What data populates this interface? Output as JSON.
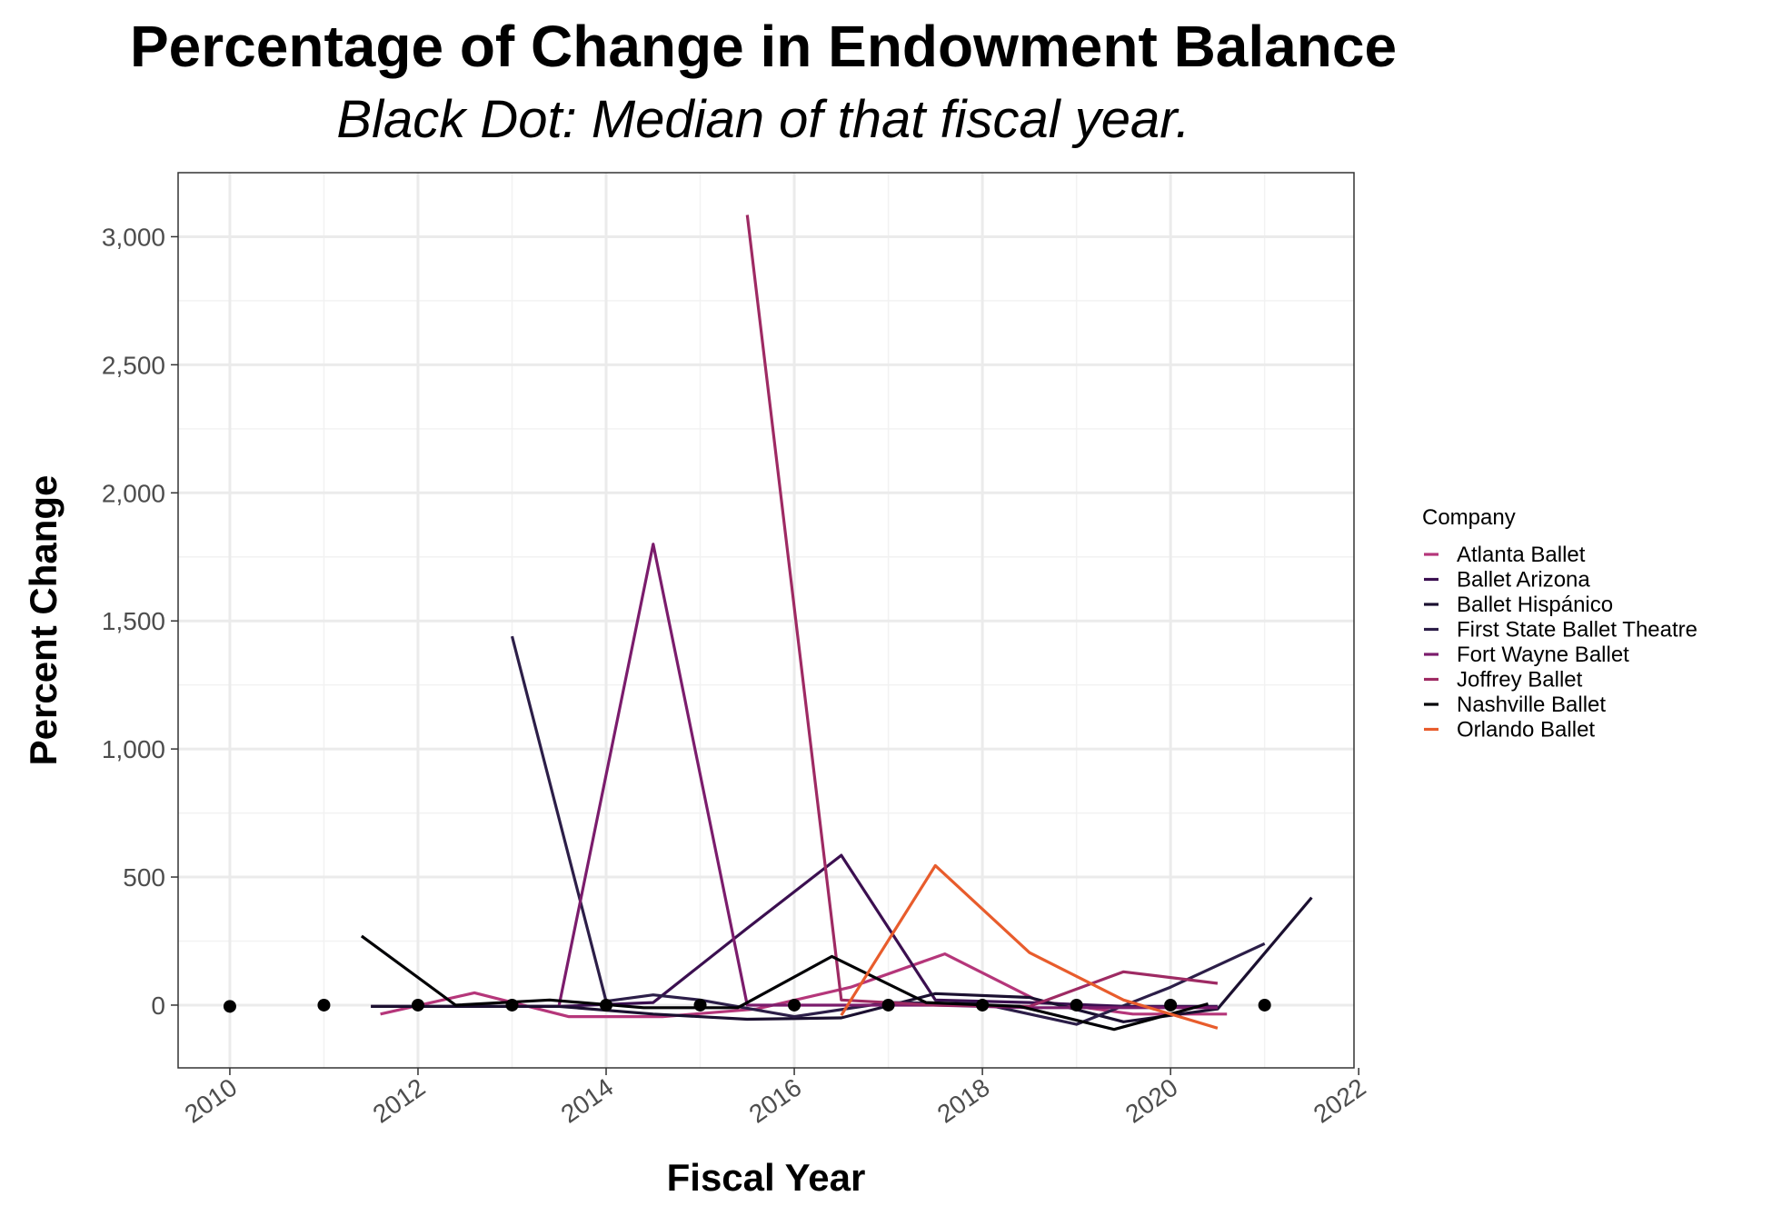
{
  "chart_data": {
    "type": "line",
    "title": "Percentage of Change in Endowment Balance",
    "subtitle": "Black Dot: Median of that fiscal year.",
    "xlabel": "Fiscal Year",
    "ylabel": "Percent Change",
    "xlim": [
      2009.45,
      2021.95
    ],
    "ylim": [
      -245,
      3250
    ],
    "x_ticks": [
      2010,
      2012,
      2014,
      2016,
      2018,
      2020,
      2022
    ],
    "y_ticks": [
      0,
      500,
      1000,
      1500,
      2000,
      2500,
      3000
    ],
    "y_tick_labels": [
      "0",
      "500",
      "1,000",
      "1,500",
      "2,000",
      "2,500",
      "3,000"
    ],
    "grid": true,
    "legend": {
      "title": "Company",
      "position": "right"
    },
    "series": [
      {
        "name": "Atlanta Ballet",
        "color": "#b5367a",
        "points": [
          [
            2011.6,
            -35
          ],
          [
            2012.6,
            48
          ],
          [
            2013.6,
            -45
          ],
          [
            2014.6,
            -45
          ],
          [
            2015.6,
            -15
          ],
          [
            2016.6,
            70
          ],
          [
            2017.6,
            200
          ],
          [
            2018.6,
            15
          ],
          [
            2019.6,
            -35
          ],
          [
            2020.6,
            -35
          ]
        ]
      },
      {
        "name": "Ballet Arizona",
        "color": "#3b0f50",
        "points": [
          [
            2011.5,
            -5
          ],
          [
            2012.5,
            -5
          ],
          [
            2013.5,
            -5
          ],
          [
            2014.5,
            10
          ],
          [
            2015.5,
            300
          ],
          [
            2016.5,
            585
          ],
          [
            2017.5,
            20
          ],
          [
            2018.5,
            10
          ],
          [
            2019.5,
            -5
          ],
          [
            2020.5,
            -5
          ]
        ]
      },
      {
        "name": "Ballet Hispánico",
        "color": "#1b1030",
        "points": [
          [
            2011.5,
            -5
          ],
          [
            2012.5,
            -5
          ],
          [
            2013.5,
            -5
          ],
          [
            2014.5,
            -35
          ],
          [
            2015.5,
            -55
          ],
          [
            2016.5,
            -50
          ],
          [
            2017.5,
            45
          ],
          [
            2018.5,
            30
          ],
          [
            2019.5,
            -65
          ],
          [
            2020.5,
            -15
          ],
          [
            2021.5,
            420
          ]
        ]
      },
      {
        "name": "First State Ballet Theatre",
        "color": "#2c1e48",
        "points": [
          [
            2013,
            1440
          ],
          [
            2014,
            15
          ],
          [
            2014.5,
            40
          ],
          [
            2015,
            20
          ],
          [
            2016,
            -45
          ],
          [
            2017,
            10
          ],
          [
            2018,
            5
          ],
          [
            2019,
            -75
          ],
          [
            2020,
            70
          ],
          [
            2021,
            240
          ]
        ]
      },
      {
        "name": "Fort Wayne Ballet",
        "color": "#7b1c6c",
        "points": [
          [
            2013.5,
            0
          ],
          [
            2014.5,
            1800
          ],
          [
            2015.5,
            0
          ],
          [
            2016.5,
            0
          ],
          [
            2017.5,
            0
          ],
          [
            2018.5,
            -10
          ],
          [
            2019.5,
            -10
          ],
          [
            2020.5,
            -10
          ]
        ]
      },
      {
        "name": "Joffrey Ballet",
        "color": "#9e2a63",
        "points": [
          [
            2015.5,
            3085
          ],
          [
            2016.5,
            20
          ],
          [
            2017.5,
            0
          ],
          [
            2018.5,
            -5
          ],
          [
            2019.5,
            130
          ],
          [
            2020.5,
            85
          ]
        ]
      },
      {
        "name": "Nashville Ballet",
        "color": "#000004",
        "points": [
          [
            2011.4,
            270
          ],
          [
            2012.4,
            0
          ],
          [
            2013.4,
            20
          ],
          [
            2014.4,
            -10
          ],
          [
            2015.4,
            -10
          ],
          [
            2016.4,
            190
          ],
          [
            2017.4,
            10
          ],
          [
            2018.4,
            -5
          ],
          [
            2019.4,
            -95
          ],
          [
            2020.4,
            5
          ]
        ]
      },
      {
        "name": "Orlando Ballet",
        "color": "#e85c2c",
        "points": [
          [
            2016.5,
            -40
          ],
          [
            2017.5,
            545
          ],
          [
            2018.5,
            205
          ],
          [
            2019.5,
            20
          ],
          [
            2020.5,
            -90
          ]
        ]
      }
    ],
    "medians": {
      "color": "#000000",
      "points": [
        [
          2010,
          -5
        ],
        [
          2011,
          0
        ],
        [
          2012,
          0
        ],
        [
          2013,
          0
        ],
        [
          2014,
          0
        ],
        [
          2015,
          0
        ],
        [
          2016,
          0
        ],
        [
          2017,
          0
        ],
        [
          2018,
          0
        ],
        [
          2019,
          0
        ],
        [
          2020,
          0
        ],
        [
          2021,
          0
        ]
      ]
    }
  }
}
